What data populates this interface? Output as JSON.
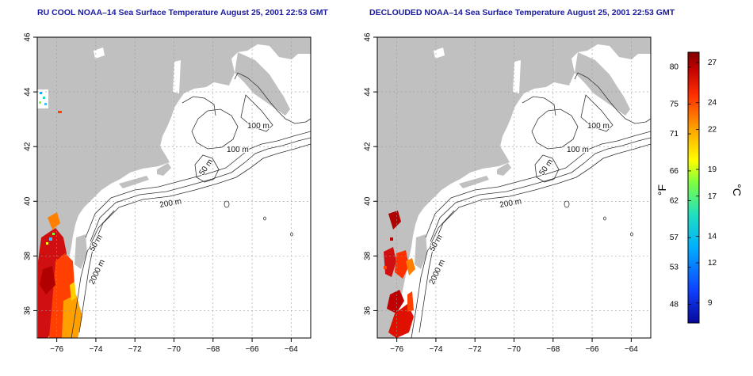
{
  "panels": [
    {
      "title": "RU COOL NOAA–14 Sea Surface Temperature August 25, 2001 22:53 GMT",
      "contour_labels": [
        "100 m",
        "100 m",
        "50 m",
        "200 m",
        "50 m",
        "2000 m"
      ]
    },
    {
      "title": "DECLOUDED NOAA–14 Sea Surface Temperature August 25, 2001 22:53 GMT",
      "contour_labels": [
        "100 m",
        "100 m",
        "50 m",
        "200 m",
        "50 m",
        "2000 m"
      ]
    }
  ],
  "axes": {
    "x_ticks": [
      "−76",
      "−74",
      "−72",
      "−70",
      "−68",
      "−66",
      "−64"
    ],
    "y_ticks": [
      "46",
      "44",
      "42",
      "40",
      "38",
      "36"
    ],
    "lon_range": [
      -77,
      -63
    ],
    "lat_range": [
      35,
      46
    ],
    "grid": true
  },
  "colorbar": {
    "f_label": "°F",
    "c_label": "°C",
    "f_ticks": [
      "80",
      "75",
      "71",
      "66",
      "62",
      "57",
      "53",
      "48"
    ],
    "c_ticks": [
      "27",
      "24",
      "22",
      "19",
      "17",
      "14",
      "12",
      "9"
    ],
    "colors": [
      "#08089a",
      "#1040ff",
      "#00b0ff",
      "#20e0c0",
      "#80ff40",
      "#ffff00",
      "#ffa000",
      "#ff3000",
      "#c00000",
      "#800000"
    ]
  },
  "colors": {
    "land": "#c0c0c0",
    "title": "#1a1aa0",
    "contour": "#333333"
  }
}
